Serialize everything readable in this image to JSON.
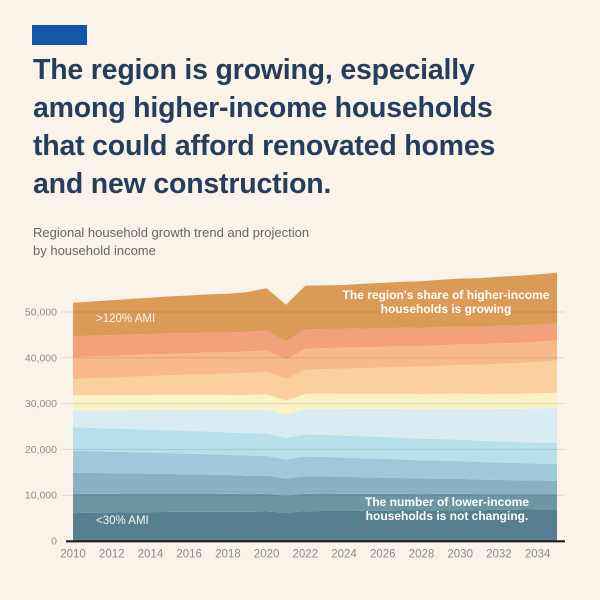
{
  "header": {
    "badge_color": "#1457a8",
    "title": "The region is growing, especially\namong higher-income households\nthat could afford renovated homes\nand new construction.",
    "subtitle": "Regional household growth trend and projection\nby household income"
  },
  "chart_data": {
    "type": "area",
    "stacked": true,
    "x": [
      2010,
      2011,
      2012,
      2013,
      2014,
      2015,
      2016,
      2017,
      2018,
      2019,
      2020,
      2021,
      2022,
      2023,
      2024,
      2025,
      2026,
      2027,
      2028,
      2029,
      2030,
      2031,
      2032,
      2033,
      2034,
      2035
    ],
    "x_tick_labels": [
      "2010",
      "2012",
      "2014",
      "2016",
      "2018",
      "2020",
      "2022",
      "2024",
      "2026",
      "2028",
      "2030",
      "2032",
      "2034"
    ],
    "x_tick_years": [
      2010,
      2012,
      2014,
      2016,
      2018,
      2020,
      2022,
      2024,
      2026,
      2028,
      2030,
      2032,
      2034
    ],
    "y_ticks": [
      0,
      10000,
      20000,
      30000,
      40000,
      50000
    ],
    "y_tick_labels": [
      "0",
      "10,000",
      "20,000",
      "30,000",
      "40,000",
      "50,000"
    ],
    "ylim": [
      0,
      60000
    ],
    "grid": true,
    "series": [
      {
        "label": "<30% AMI",
        "color": "#587f90",
        "values": [
          6100,
          6150,
          6200,
          6250,
          6300,
          6350,
          6350,
          6400,
          6400,
          6350,
          6450,
          6200,
          6500,
          6550,
          6550,
          6600,
          6600,
          6650,
          6650,
          6700,
          6750,
          6750,
          6800,
          6850,
          6900,
          6950
        ]
      },
      {
        "label": "",
        "color": "#6d96a5",
        "values": [
          4200,
          4150,
          4100,
          4100,
          4050,
          4000,
          4000,
          3950,
          3900,
          3900,
          3850,
          3700,
          3800,
          3800,
          3750,
          3700,
          3700,
          3650,
          3600,
          3600,
          3550,
          3500,
          3450,
          3400,
          3350,
          3300
        ]
      },
      {
        "label": "",
        "color": "#88b1c3",
        "values": [
          4600,
          4550,
          4500,
          4400,
          4350,
          4300,
          4200,
          4150,
          4100,
          4000,
          3950,
          3750,
          3850,
          3750,
          3700,
          3600,
          3550,
          3450,
          3400,
          3300,
          3250,
          3150,
          3100,
          3000,
          2950,
          2900
        ]
      },
      {
        "label": "",
        "color": "#9fc9db",
        "values": [
          4800,
          4750,
          4700,
          4650,
          4600,
          4550,
          4500,
          4450,
          4400,
          4400,
          4350,
          4150,
          4300,
          4250,
          4200,
          4150,
          4100,
          4050,
          4000,
          3950,
          3900,
          3850,
          3800,
          3750,
          3700,
          3700
        ]
      },
      {
        "label": "",
        "color": "#b9dfec",
        "values": [
          5100,
          5100,
          5050,
          5050,
          5000,
          5000,
          4950,
          4950,
          4900,
          4900,
          4900,
          4700,
          4850,
          4850,
          4800,
          4800,
          4750,
          4750,
          4700,
          4700,
          4700,
          4650,
          4650,
          4600,
          4600,
          4600
        ]
      },
      {
        "label": "",
        "color": "#d7edf2",
        "values": [
          3700,
          3850,
          4000,
          4150,
          4300,
          4450,
          4600,
          4750,
          4900,
          5050,
          5250,
          5050,
          5550,
          5700,
          5850,
          6000,
          6150,
          6300,
          6450,
          6600,
          6750,
          6900,
          7050,
          7250,
          7450,
          7650
        ]
      },
      {
        "label": "",
        "color": "#fbf3c6",
        "values": [
          3300,
          3300,
          3300,
          3300,
          3300,
          3300,
          3300,
          3300,
          3300,
          3300,
          3300,
          3100,
          3300,
          3300,
          3300,
          3300,
          3300,
          3300,
          3300,
          3300,
          3300,
          3300,
          3300,
          3300,
          3300,
          3300
        ]
      },
      {
        "label": "",
        "color": "#fbd09e",
        "values": [
          3500,
          3650,
          3800,
          3950,
          4100,
          4250,
          4400,
          4500,
          4650,
          4800,
          4950,
          4650,
          5200,
          5350,
          5450,
          5600,
          5700,
          5850,
          5950,
          6100,
          6250,
          6400,
          6550,
          6700,
          6850,
          7000
        ]
      },
      {
        "label": "",
        "color": "#f8ba8b",
        "values": [
          4800,
          4800,
          4750,
          4750,
          4750,
          4700,
          4700,
          4700,
          4650,
          4650,
          4650,
          4350,
          4600,
          4600,
          4600,
          4550,
          4550,
          4550,
          4500,
          4500,
          4500,
          4450,
          4450,
          4400,
          4400,
          4400
        ]
      },
      {
        "label": "",
        "color": "#f2a17b",
        "values": [
          4600,
          4550,
          4550,
          4500,
          4450,
          4450,
          4400,
          4350,
          4300,
          4300,
          4250,
          3950,
          4200,
          4150,
          4100,
          4100,
          4050,
          4000,
          3950,
          3950,
          3900,
          3850,
          3850,
          3800,
          3750,
          3700
        ]
      },
      {
        "label": ">120% AMI",
        "color": "#d99b55",
        "values": [
          7300,
          7450,
          7600,
          7750,
          7900,
          8050,
          8200,
          8350,
          8500,
          8700,
          9300,
          8000,
          9600,
          9500,
          9600,
          9750,
          9900,
          10050,
          10200,
          10350,
          10450,
          10600,
          10700,
          10850,
          10950,
          11050
        ]
      }
    ],
    "annotations": [
      {
        "text": "The region's share of higher-income\nhouseholds is growing"
      },
      {
        "text": "The number of lower-income\nhouseholds is not changing."
      }
    ]
  }
}
